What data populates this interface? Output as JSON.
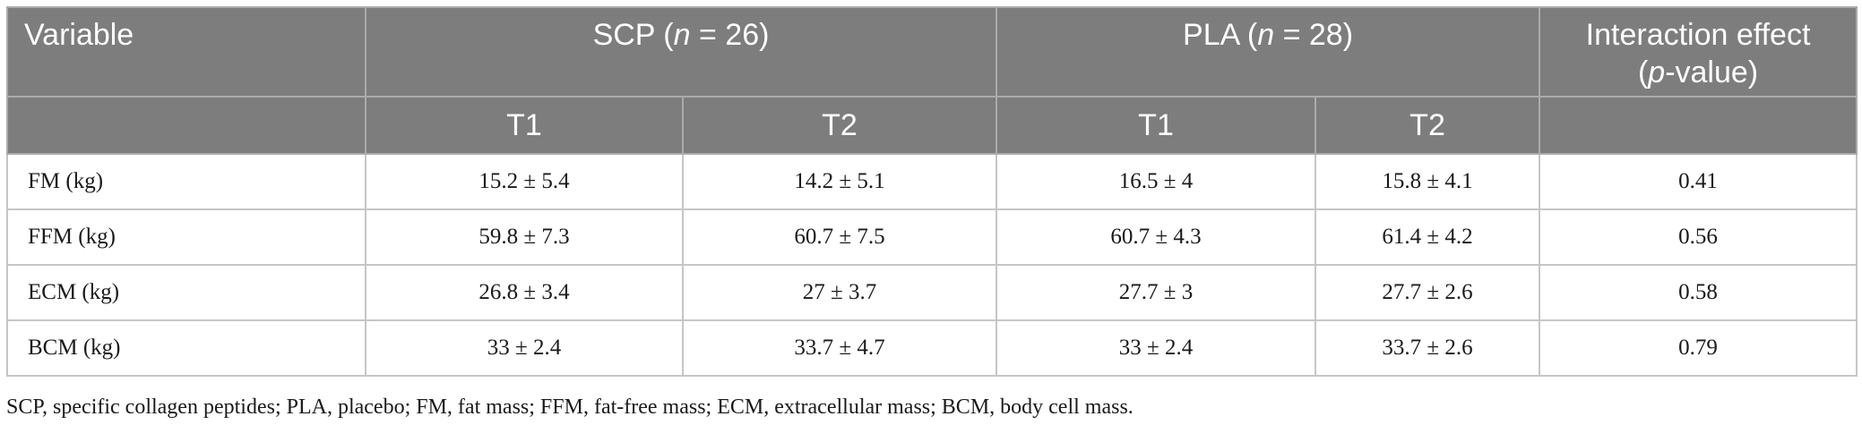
{
  "header": {
    "variable": "Variable",
    "scp_prefix": "SCP (",
    "scp_n": "n",
    "scp_suffix": " = 26)",
    "pla_prefix": "PLA (",
    "pla_n": "n",
    "pla_suffix": " = 28)",
    "interaction_line1": "Interaction effect",
    "interaction_line2_prefix": "(",
    "interaction_line2_p": "p",
    "interaction_line2_suffix": "-value)",
    "sub": [
      "T1",
      "T2",
      "T1",
      "T2"
    ]
  },
  "rows": [
    {
      "variable": "FM (kg)",
      "scp_t1": "15.2 ± 5.4",
      "scp_t2": "14.2 ± 5.1",
      "pla_t1": "16.5 ± 4",
      "pla_t2": "15.8 ± 4.1",
      "p": "0.41"
    },
    {
      "variable": "FFM (kg)",
      "scp_t1": "59.8 ± 7.3",
      "scp_t2": "60.7 ± 7.5",
      "pla_t1": "60.7 ± 4.3",
      "pla_t2": "61.4 ± 4.2",
      "p": "0.56"
    },
    {
      "variable": "ECM (kg)",
      "scp_t1": "26.8 ± 3.4",
      "scp_t2": "27 ± 3.7",
      "pla_t1": "27.7 ± 3",
      "pla_t2": "27.7 ± 2.6",
      "p": "0.58"
    },
    {
      "variable": "BCM (kg)",
      "scp_t1": "33 ± 2.4",
      "scp_t2": "33.7 ± 4.7",
      "pla_t1": "33 ± 2.4",
      "pla_t2": "33.7 ± 2.6",
      "p": "0.79"
    }
  ],
  "caption": "SCP, specific collagen peptides; PLA, placebo; FM, fat mass; FFM, fat-free mass; ECM, extracellular mass; BCM, body cell mass.",
  "colors": {
    "header_bg": "#7d7d7d",
    "header_text": "#ffffff",
    "grid": "#c6c6c6"
  }
}
